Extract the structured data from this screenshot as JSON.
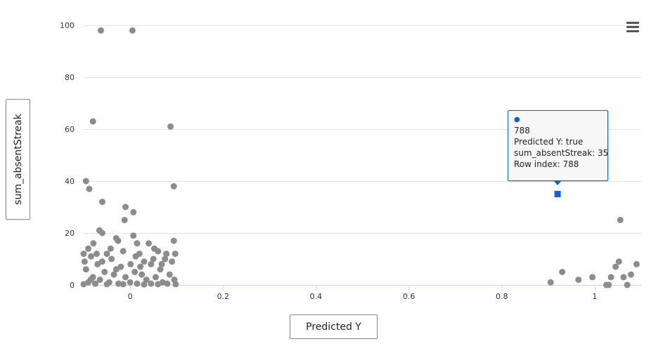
{
  "chart_data": {
    "type": "scatter",
    "xlabel": "Predicted Y",
    "ylabel": "sum_absentStreak",
    "xlim": [
      -0.1,
      1.1
    ],
    "ylim": [
      0,
      100
    ],
    "x_ticks": [
      "0",
      "0.2",
      "0.4",
      "0.6",
      "0.8",
      "1"
    ],
    "y_ticks": [
      "0",
      "20",
      "40",
      "60",
      "80",
      "100"
    ],
    "grid": true,
    "series": [
      {
        "color": "#8c8c8c",
        "points": [
          [
            -0.063,
            98
          ],
          [
            0.005,
            98
          ],
          [
            -0.08,
            63
          ],
          [
            0.087,
            61
          ],
          [
            -0.095,
            40
          ],
          [
            -0.088,
            37
          ],
          [
            0.094,
            38
          ],
          [
            -0.06,
            32
          ],
          [
            -0.01,
            30
          ],
          [
            0.007,
            28
          ],
          [
            -0.012,
            25
          ],
          [
            -0.066,
            21
          ],
          [
            -0.06,
            20
          ],
          [
            0.007,
            19
          ],
          [
            -0.03,
            18
          ],
          [
            -0.026,
            17
          ],
          [
            -0.079,
            16
          ],
          [
            0.015,
            16
          ],
          [
            0.04,
            16
          ],
          [
            0.094,
            17
          ],
          [
            0.052,
            14
          ],
          [
            -0.09,
            14
          ],
          [
            0.097,
            12
          ],
          [
            -0.1,
            12
          ],
          [
            -0.05,
            12
          ],
          [
            0.02,
            12
          ],
          [
            0.06,
            13
          ],
          [
            -0.015,
            13
          ],
          [
            -0.084,
            11
          ],
          [
            0.075,
            10
          ],
          [
            0.03,
            9
          ],
          [
            -0.04,
            10
          ],
          [
            0.001,
            8
          ],
          [
            0.09,
            9
          ],
          [
            -0.07,
            8
          ],
          [
            0.045,
            8
          ],
          [
            -0.02,
            7
          ],
          [
            -0.095,
            6
          ],
          [
            0.065,
            6
          ],
          [
            -0.055,
            5
          ],
          [
            0.01,
            5
          ],
          [
            0.085,
            4
          ],
          [
            -0.035,
            4
          ],
          [
            0.025,
            4
          ],
          [
            -0.08,
            3
          ],
          [
            0.055,
            3
          ],
          [
            -0.01,
            3
          ],
          [
            0.095,
            2
          ],
          [
            -0.065,
            2
          ],
          [
            0.035,
            2
          ],
          [
            -0.045,
            1
          ],
          [
            0.07,
            1
          ],
          [
            0.0,
            1
          ],
          [
            -0.09,
            1
          ],
          [
            -0.025,
            0.5
          ],
          [
            0.045,
            0.5
          ],
          [
            0.08,
            0.5
          ],
          [
            -0.075,
            0.5
          ],
          [
            0.015,
            0.5
          ],
          [
            -0.05,
            0.3
          ],
          [
            0.06,
            0.3
          ],
          [
            -0.1,
            0.3
          ],
          [
            0.098,
            0.3
          ],
          [
            -0.015,
            0.3
          ],
          [
            0.03,
            0.2
          ],
          [
            -0.085,
            2
          ],
          [
            -0.03,
            6
          ],
          [
            0.05,
            10
          ],
          [
            -0.06,
            9
          ],
          [
            0.012,
            11
          ],
          [
            -0.042,
            14
          ],
          [
            0.078,
            12
          ],
          [
            -0.072,
            12
          ],
          [
            0.022,
            7
          ],
          [
            0.068,
            8
          ],
          [
            -0.098,
            9
          ],
          [
            0.905,
            1
          ],
          [
            0.93,
            5
          ],
          [
            0.965,
            2
          ],
          [
            0.995,
            3
          ],
          [
            1.025,
            0
          ],
          [
            1.03,
            0
          ],
          [
            1.035,
            3
          ],
          [
            1.045,
            7
          ],
          [
            1.052,
            9
          ],
          [
            1.055,
            25
          ],
          [
            1.062,
            3
          ],
          [
            1.07,
            0
          ],
          [
            1.078,
            4
          ],
          [
            1.09,
            8
          ]
        ]
      }
    ],
    "highlight": {
      "x": 0.92,
      "y": 35,
      "color": "#1560d4"
    }
  },
  "tooltip": {
    "row": "788",
    "predicted": "Predicted Y: true",
    "streak": "sum_absentStreak: 35",
    "row_index": "Row index: 788"
  },
  "icons": {
    "menu": "hamburger-menu-icon"
  }
}
